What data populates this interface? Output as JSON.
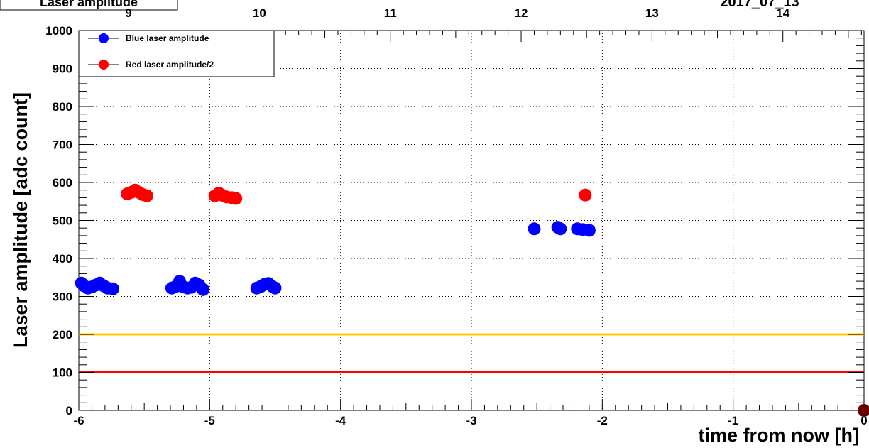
{
  "title_box": "Laser amplitude",
  "date_label": "2017_07_13",
  "chart_data": {
    "type": "scatter",
    "title": "",
    "xlabel": "time from now [h]",
    "ylabel": "Laser amplitude [adc count]",
    "xlim": [
      -6,
      0
    ],
    "ylim": [
      0,
      1000
    ],
    "grid": true,
    "legend_position": "top-left",
    "x_ticks": [
      -6,
      -5,
      -4,
      -3,
      -2,
      -1,
      0
    ],
    "x_tick_labels": [
      "-6",
      "-5",
      "-4",
      "-3",
      "-2",
      "-1",
      "0"
    ],
    "y_ticks": [
      0,
      100,
      200,
      300,
      400,
      500,
      600,
      700,
      800,
      900,
      1000
    ],
    "y_tick_labels": [
      "0",
      "100",
      "200",
      "300",
      "400",
      "500",
      "600",
      "700",
      "800",
      "900",
      "1000"
    ],
    "top_axis": {
      "ticks": [
        -5.62,
        -4.62,
        -3.62,
        -2.62,
        -1.62,
        -0.62
      ],
      "labels": [
        "9",
        "10",
        "11",
        "12",
        "13",
        "14"
      ]
    },
    "series": [
      {
        "name": "Blue laser amplitude",
        "color": "#0000ff",
        "marker": "circle",
        "points": [
          [
            -5.98,
            335
          ],
          [
            -5.96,
            328
          ],
          [
            -5.93,
            322
          ],
          [
            -5.9,
            325
          ],
          [
            -5.87,
            330
          ],
          [
            -5.84,
            335
          ],
          [
            -5.81,
            328
          ],
          [
            -5.78,
            322
          ],
          [
            -5.74,
            320
          ],
          [
            -5.29,
            322
          ],
          [
            -5.26,
            326
          ],
          [
            -5.23,
            340
          ],
          [
            -5.2,
            325
          ],
          [
            -5.17,
            322
          ],
          [
            -5.14,
            324
          ],
          [
            -5.11,
            335
          ],
          [
            -5.08,
            330
          ],
          [
            -5.05,
            318
          ],
          [
            -4.64,
            322
          ],
          [
            -4.61,
            326
          ],
          [
            -4.58,
            332
          ],
          [
            -4.55,
            334
          ],
          [
            -4.52,
            326
          ],
          [
            -4.5,
            322
          ],
          [
            -2.52,
            478
          ],
          [
            -2.34,
            482
          ],
          [
            -2.32,
            478
          ],
          [
            -2.19,
            478
          ],
          [
            -2.15,
            476
          ],
          [
            -2.1,
            474
          ]
        ]
      },
      {
        "name": "Red laser amplitude/2",
        "color": "#ff0000",
        "marker": "circle",
        "points": [
          [
            -5.63,
            570
          ],
          [
            -5.6,
            574
          ],
          [
            -5.57,
            580
          ],
          [
            -5.54,
            574
          ],
          [
            -5.51,
            568
          ],
          [
            -5.48,
            565
          ],
          [
            -4.96,
            565
          ],
          [
            -4.93,
            572
          ],
          [
            -4.9,
            566
          ],
          [
            -4.87,
            562
          ],
          [
            -4.83,
            560
          ],
          [
            -4.8,
            558
          ],
          [
            -2.13,
            567
          ]
        ]
      },
      {
        "name": "",
        "color": "#660000",
        "marker": "circle",
        "points": [
          [
            0,
            0
          ]
        ]
      }
    ],
    "reference_lines": [
      {
        "y": 200,
        "color": "#ffcc00"
      },
      {
        "y": 100,
        "color": "#ff0000"
      }
    ]
  }
}
